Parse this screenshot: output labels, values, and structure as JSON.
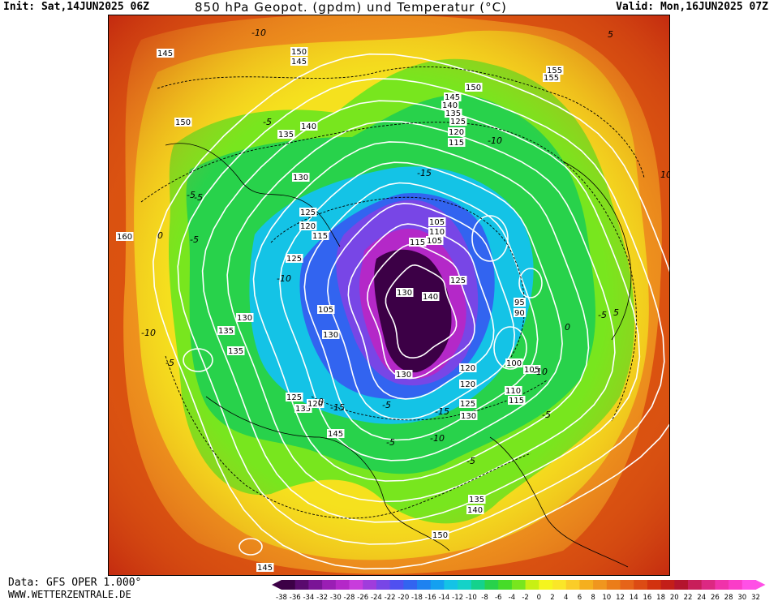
{
  "header": {
    "init": "Init: Sat,14JUN2025 06Z",
    "title": "850 hPa Geopot. (gpdm) und Temperatur (°C)",
    "valid": "Valid: Mon,16JUN2025 07Z"
  },
  "footer": {
    "data_source": "Data: GFS OPER 1.000°",
    "website": "WWW.WETTERZENTRALE.DE"
  },
  "legend": {
    "ticks": [
      "-38",
      "-36",
      "-34",
      "-32",
      "-30",
      "-28",
      "-26",
      "-24",
      "-22",
      "-20",
      "-18",
      "-16",
      "-14",
      "-12",
      "-10",
      "-8",
      "-6",
      "-4",
      "-2",
      "0",
      "2",
      "4",
      "6",
      "8",
      "10",
      "12",
      "14",
      "16",
      "18",
      "20",
      "22",
      "24",
      "26",
      "28",
      "30",
      "32"
    ],
    "colors": [
      "#3c0046",
      "#5a0a6e",
      "#7a1496",
      "#9a1eb4",
      "#b428c8",
      "#c83cdc",
      "#a03cdc",
      "#7846e6",
      "#5050f0",
      "#3264f0",
      "#1e82f0",
      "#14a0f0",
      "#14c3e6",
      "#14d2c8",
      "#14d28c",
      "#28d24b",
      "#46dc28",
      "#78e61e",
      "#c8f014",
      "#f5f51e",
      "#fae628",
      "#facd28",
      "#f5af1e",
      "#f0961e",
      "#eb7d19",
      "#e66419",
      "#dc4b14",
      "#d2320f",
      "#c31e19",
      "#b4142d",
      "#c81e5a",
      "#dc2882",
      "#f032aa",
      "#fa3cc8",
      "#ff50e6"
    ]
  },
  "map": {
    "height_labels": [
      "145",
      "150",
      "145",
      "150",
      "150",
      "155",
      "140",
      "135",
      "130",
      "145",
      "140",
      "135",
      "125",
      "120",
      "115",
      "105",
      "110",
      "105",
      "115",
      "125",
      "120",
      "115",
      "125",
      "130",
      "135",
      "135",
      "130",
      "140",
      "125",
      "120",
      "130",
      "135",
      "145",
      "130",
      "105",
      "100",
      "95",
      "90",
      "120",
      "125",
      "110",
      "115",
      "130",
      "140",
      "135",
      "150",
      "155",
      "145",
      "160",
      "105",
      "125",
      "120"
    ],
    "temperature_labels": [
      "-10",
      "-5",
      "-5",
      "-10",
      "-15",
      "-10",
      "-5",
      "0",
      "-5",
      "-10",
      "-15",
      "-5",
      "0",
      "-5",
      "5",
      "-10",
      "-15",
      "-5",
      "-10",
      "-5",
      "0",
      "-5",
      "5",
      "10",
      "-5"
    ],
    "colors": {
      "warm_outer": "#d8440c",
      "orange": "#f0961e",
      "yellow": "#f5e11e",
      "light_green": "#78e61e",
      "green": "#28d24b",
      "cyan": "#14c3e6",
      "blue": "#3264f0",
      "purple": "#7846e6",
      "magenta": "#b428c8",
      "dark_purple": "#3c0046",
      "isohypse": "#ffffff",
      "isotherm": "#000000"
    }
  }
}
